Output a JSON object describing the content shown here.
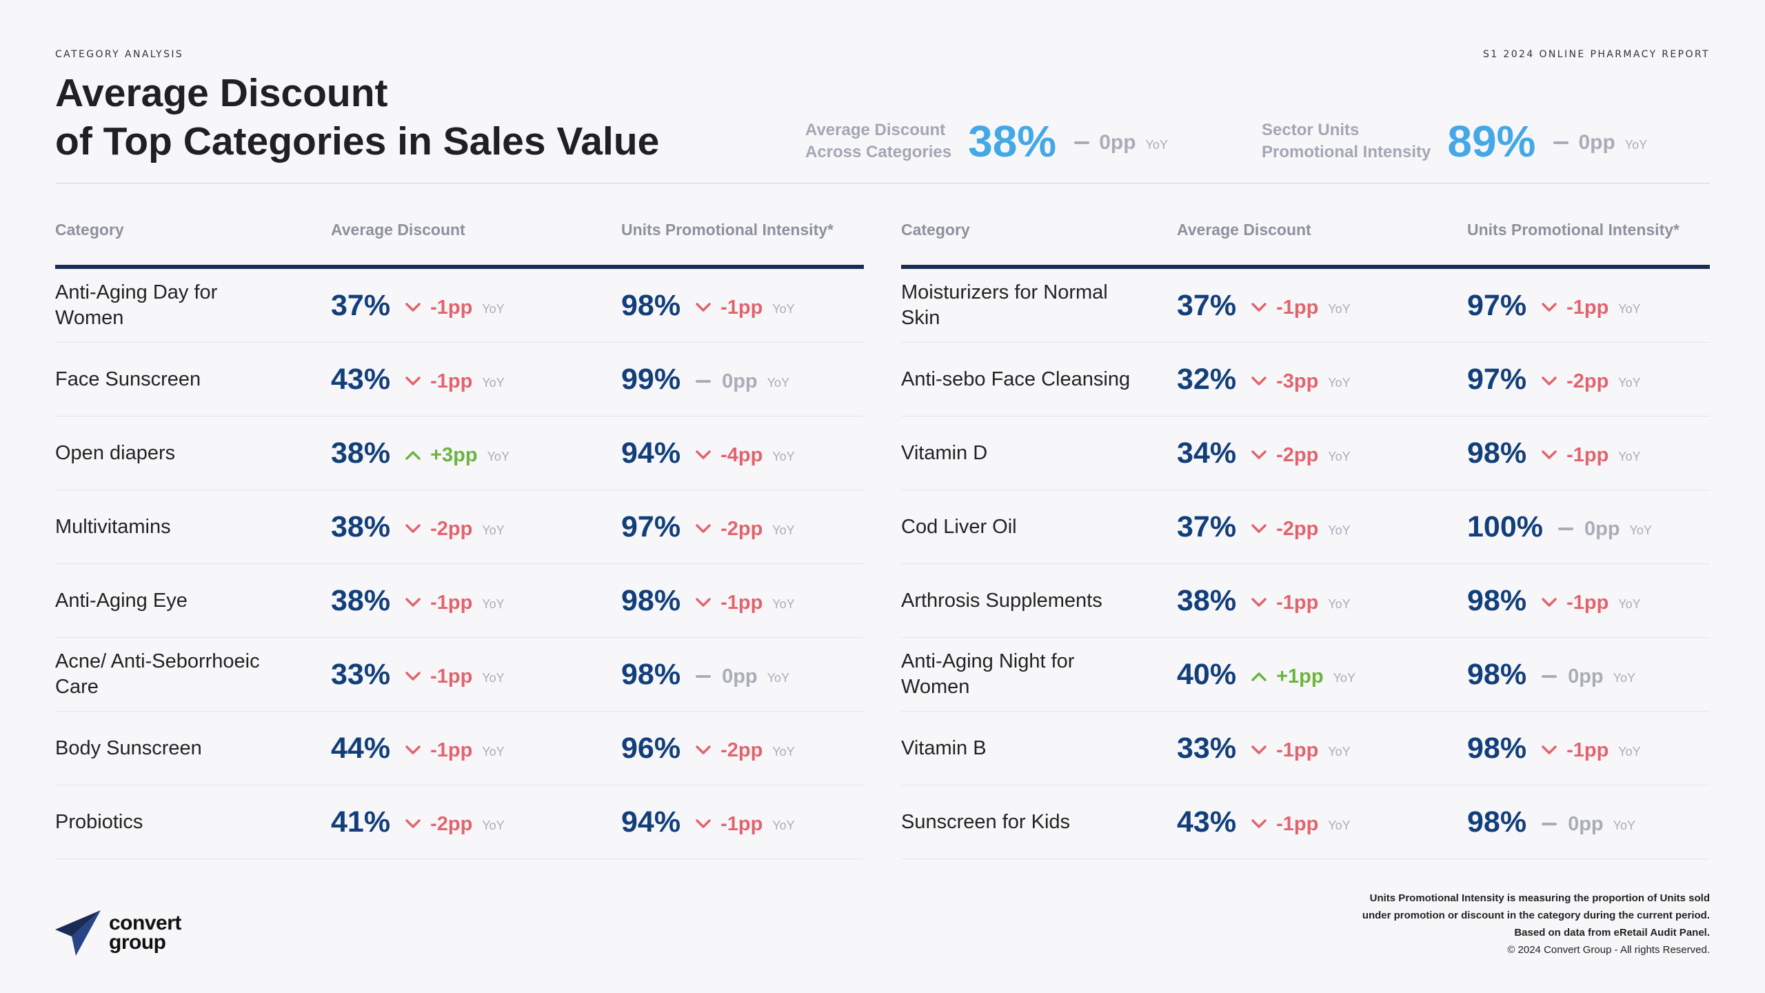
{
  "header": {
    "section_label": "CATEGORY ANALYSIS",
    "report_label": "S1 2024 ONLINE PHARMACY REPORT",
    "title_line1": "Average Discount",
    "title_line2": "of Top Categories in Sales Value"
  },
  "kpis": [
    {
      "label_line1": "Average Discount",
      "label_line2": "Across Categories",
      "value": "38%",
      "delta": "0pp",
      "yoy": "YoY"
    },
    {
      "label_line1": "Sector Units",
      "label_line2": "Promotional Intensity",
      "value": "89%",
      "delta": "0pp",
      "yoy": "YoY"
    }
  ],
  "table_headers": {
    "category": "Category",
    "avg_discount": "Average Discount",
    "units_intensity": "Units Promotional Intensity*"
  },
  "left_rows": [
    {
      "category": "Anti-Aging Day for Women",
      "discount": "37%",
      "discount_delta": "-1pp",
      "discount_dir": "down",
      "intensity": "98%",
      "intensity_delta": "-1pp",
      "intensity_dir": "down"
    },
    {
      "category": "Face Sunscreen",
      "discount": "43%",
      "discount_delta": "-1pp",
      "discount_dir": "down",
      "intensity": "99%",
      "intensity_delta": "0pp",
      "intensity_dir": "flat"
    },
    {
      "category": "Open diapers",
      "discount": "38%",
      "discount_delta": "+3pp",
      "discount_dir": "up",
      "intensity": "94%",
      "intensity_delta": "-4pp",
      "intensity_dir": "down"
    },
    {
      "category": "Multivitamins",
      "discount": "38%",
      "discount_delta": "-2pp",
      "discount_dir": "down",
      "intensity": "97%",
      "intensity_delta": "-2pp",
      "intensity_dir": "down"
    },
    {
      "category": "Anti-Aging Eye",
      "discount": "38%",
      "discount_delta": "-1pp",
      "discount_dir": "down",
      "intensity": "98%",
      "intensity_delta": "-1pp",
      "intensity_dir": "down"
    },
    {
      "category": "Acne/ Anti-Seborrhoeic Care",
      "discount": "33%",
      "discount_delta": "-1pp",
      "discount_dir": "down",
      "intensity": "98%",
      "intensity_delta": "0pp",
      "intensity_dir": "flat"
    },
    {
      "category": "Body Sunscreen",
      "discount": "44%",
      "discount_delta": "-1pp",
      "discount_dir": "down",
      "intensity": "96%",
      "intensity_delta": "-2pp",
      "intensity_dir": "down"
    },
    {
      "category": "Probiotics",
      "discount": "41%",
      "discount_delta": "-2pp",
      "discount_dir": "down",
      "intensity": "94%",
      "intensity_delta": "-1pp",
      "intensity_dir": "down"
    }
  ],
  "right_rows": [
    {
      "category": "Moisturizers for Normal Skin",
      "discount": "37%",
      "discount_delta": "-1pp",
      "discount_dir": "down",
      "intensity": "97%",
      "intensity_delta": "-1pp",
      "intensity_dir": "down"
    },
    {
      "category": "Anti-sebo Face Cleansing",
      "discount": "32%",
      "discount_delta": "-3pp",
      "discount_dir": "down",
      "intensity": "97%",
      "intensity_delta": "-2pp",
      "intensity_dir": "down"
    },
    {
      "category": "Vitamin D",
      "discount": "34%",
      "discount_delta": "-2pp",
      "discount_dir": "down",
      "intensity": "98%",
      "intensity_delta": "-1pp",
      "intensity_dir": "down"
    },
    {
      "category": "Cod Liver Oil",
      "discount": "37%",
      "discount_delta": "-2pp",
      "discount_dir": "down",
      "intensity": "100%",
      "intensity_delta": "0pp",
      "intensity_dir": "flat"
    },
    {
      "category": "Arthrosis Supplements",
      "discount": "38%",
      "discount_delta": "-1pp",
      "discount_dir": "down",
      "intensity": "98%",
      "intensity_delta": "-1pp",
      "intensity_dir": "down"
    },
    {
      "category": "Anti-Aging Night for Women",
      "discount": "40%",
      "discount_delta": "+1pp",
      "discount_dir": "up",
      "intensity": "98%",
      "intensity_delta": "0pp",
      "intensity_dir": "flat"
    },
    {
      "category": "Vitamin B",
      "discount": "33%",
      "discount_delta": "-1pp",
      "discount_dir": "down",
      "intensity": "98%",
      "intensity_delta": "-1pp",
      "intensity_dir": "down"
    },
    {
      "category": "Sunscreen for Kids",
      "discount": "43%",
      "discount_delta": "-1pp",
      "discount_dir": "down",
      "intensity": "98%",
      "intensity_delta": "0pp",
      "intensity_dir": "flat"
    }
  ],
  "yoy_label": "YoY",
  "logo": {
    "line1": "convert",
    "line2": "group",
    "icon": "paper-plane-logo-icon"
  },
  "footnote": {
    "line1": "Units Promotional Intensity is measuring the proportion of Units sold",
    "line2": "under promotion or discount in the category during the current period.",
    "line3": "Based on data from eRetail Audit Panel.",
    "copyright": "© 2024 Convert Group - All rights Reserved."
  },
  "colors": {
    "negative": "#e3636d",
    "positive": "#6cb43f",
    "neutral": "#a9adb8",
    "value": "#123f7a",
    "kpi": "#44a8e6",
    "rule": "#1a2c56"
  }
}
